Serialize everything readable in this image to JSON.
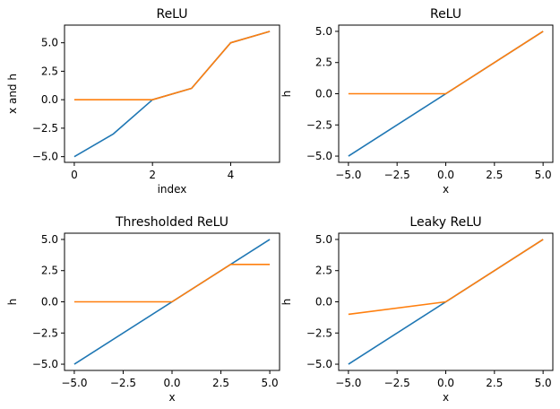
{
  "colors": {
    "input": "#1f77b4",
    "output": "#ff7f0e"
  },
  "chart_data": [
    {
      "type": "line",
      "title": "ReLU",
      "xlabel": "index",
      "ylabel": "x and h",
      "xlim": [
        -0.25,
        5.25
      ],
      "ylim": [
        -5.5,
        6.55
      ],
      "xticks": [
        0,
        2,
        4
      ],
      "xtick_labels": [
        "0",
        "2",
        "4"
      ],
      "yticks": [
        -5,
        -2.5,
        0,
        2.5,
        5
      ],
      "ytick_labels": [
        "−5.0",
        "−2.5",
        "0.0",
        "2.5",
        "5.0"
      ],
      "grid": false,
      "series": [
        {
          "color": "#1f77b4",
          "x": [
            0,
            1,
            2,
            3,
            4,
            5
          ],
          "y": [
            -5,
            -3,
            0,
            1,
            5,
            6
          ]
        },
        {
          "color": "#ff7f0e",
          "x": [
            0,
            1,
            2,
            3,
            4,
            5
          ],
          "y": [
            0,
            0,
            0,
            1,
            5,
            6
          ]
        }
      ]
    },
    {
      "type": "line",
      "title": "ReLU",
      "xlabel": "x",
      "ylabel": "h",
      "xlim": [
        -5.5,
        5.5
      ],
      "ylim": [
        -5.5,
        5.5
      ],
      "xticks": [
        -5,
        -2.5,
        0,
        2.5,
        5
      ],
      "xtick_labels": [
        "−5.0",
        "−2.5",
        "0.0",
        "2.5",
        "5.0"
      ],
      "yticks": [
        -5,
        -2.5,
        0,
        2.5,
        5
      ],
      "ytick_labels": [
        "−5.0",
        "−2.5",
        "0.0",
        "2.5",
        "5.0"
      ],
      "grid": false,
      "series": [
        {
          "color": "#1f77b4",
          "x": [
            -5,
            5
          ],
          "y": [
            -5,
            5
          ]
        },
        {
          "color": "#ff7f0e",
          "x": [
            -5,
            0,
            5
          ],
          "y": [
            0,
            0,
            5
          ]
        }
      ]
    },
    {
      "type": "line",
      "title": "Thresholded ReLU",
      "xlabel": "x",
      "ylabel": "h",
      "xlim": [
        -5.5,
        5.5
      ],
      "ylim": [
        -5.5,
        5.5
      ],
      "xticks": [
        -5,
        -2.5,
        0,
        2.5,
        5
      ],
      "xtick_labels": [
        "−5.0",
        "−2.5",
        "0.0",
        "2.5",
        "5.0"
      ],
      "yticks": [
        -5,
        -2.5,
        0,
        2.5,
        5
      ],
      "ytick_labels": [
        "−5.0",
        "−2.5",
        "0.0",
        "2.5",
        "5.0"
      ],
      "grid": false,
      "series": [
        {
          "color": "#1f77b4",
          "x": [
            -5,
            5
          ],
          "y": [
            -5,
            5
          ]
        },
        {
          "color": "#ff7f0e",
          "x": [
            -5,
            0,
            3,
            5
          ],
          "y": [
            0,
            0,
            3,
            3
          ]
        }
      ]
    },
    {
      "type": "line",
      "title": "Leaky ReLU",
      "xlabel": "x",
      "ylabel": "h",
      "xlim": [
        -5.5,
        5.5
      ],
      "ylim": [
        -5.5,
        5.5
      ],
      "xticks": [
        -5,
        -2.5,
        0,
        2.5,
        5
      ],
      "xtick_labels": [
        "−5.0",
        "−2.5",
        "0.0",
        "2.5",
        "5.0"
      ],
      "yticks": [
        -5,
        -2.5,
        0,
        2.5,
        5
      ],
      "ytick_labels": [
        "−5.0",
        "−2.5",
        "0.0",
        "2.5",
        "5.0"
      ],
      "grid": false,
      "series": [
        {
          "color": "#1f77b4",
          "x": [
            -5,
            5
          ],
          "y": [
            -5,
            5
          ]
        },
        {
          "color": "#ff7f0e",
          "x": [
            -5,
            0,
            5
          ],
          "y": [
            -1,
            0,
            5
          ]
        }
      ]
    }
  ]
}
